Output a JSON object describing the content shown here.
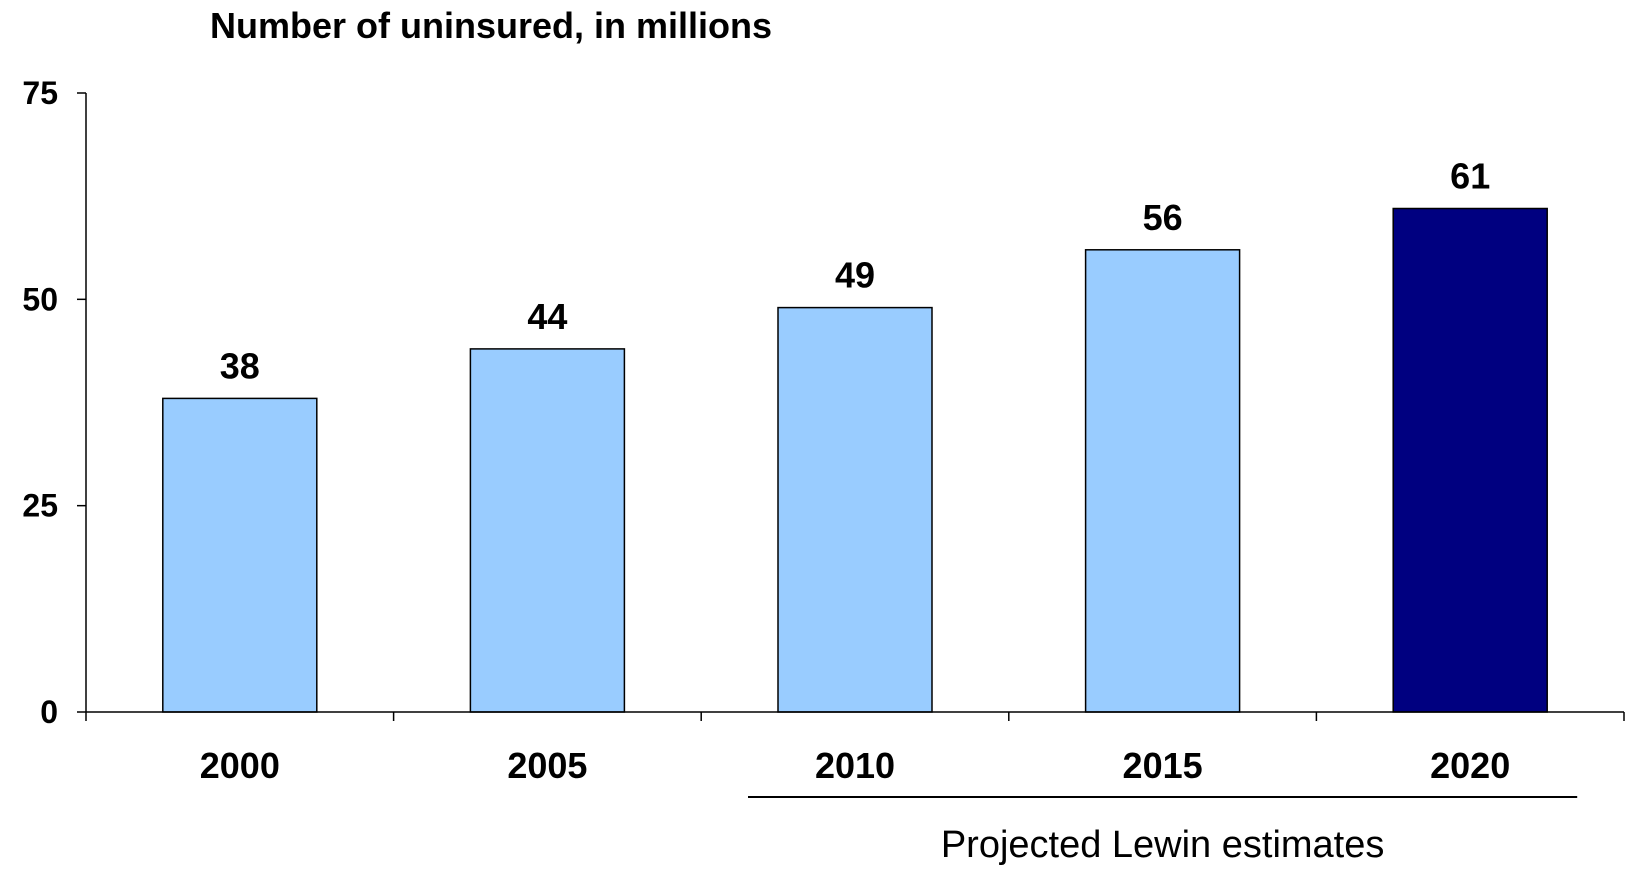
{
  "chart_data": {
    "type": "bar",
    "title": "Number of uninsured, in millions",
    "xlabel": "",
    "ylabel": "",
    "categories": [
      "2000",
      "2005",
      "2010",
      "2015",
      "2020"
    ],
    "values": [
      38,
      44,
      49,
      56,
      61
    ],
    "data_labels": [
      "38",
      "44",
      "49",
      "56",
      "61"
    ],
    "ylim": [
      0,
      75
    ],
    "yticks": [
      0,
      25,
      50,
      75
    ],
    "ytick_labels": [
      "0",
      "25",
      "50",
      "75"
    ],
    "grid": false,
    "legend": "none",
    "bar_colors": [
      "#99CCFF",
      "#99CCFF",
      "#99CCFF",
      "#99CCFF",
      "#000080"
    ],
    "annotation": {
      "text": "Projected Lewin estimates",
      "spans_categories": [
        "2010",
        "2015",
        "2020"
      ]
    }
  }
}
